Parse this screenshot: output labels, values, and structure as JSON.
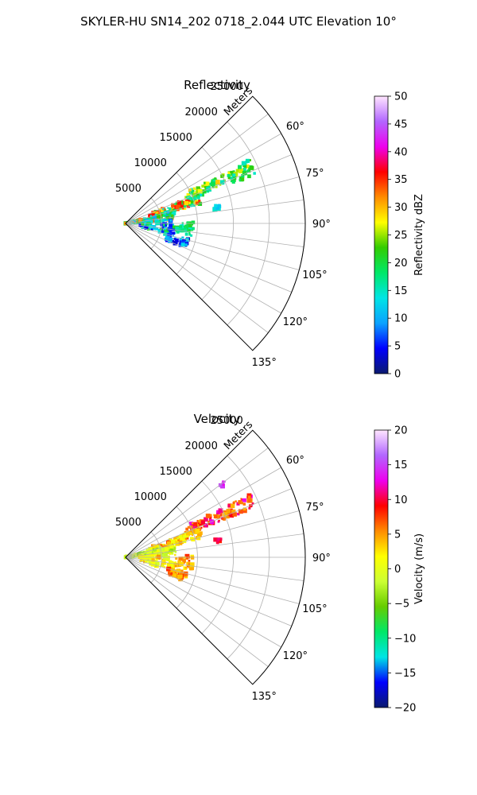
{
  "suptitle": "SKYLER-HU  SN14_202  0718_2.044 UTC Elevation 10°",
  "chart_data": [
    {
      "type": "polar-sector",
      "title": "Reflectivity",
      "radial_label": "Meters",
      "r_ticks": [
        5000,
        10000,
        15000,
        20000,
        25000
      ],
      "r_tick_labels": [
        "5000",
        "10000",
        "15000",
        "20000",
        "25000"
      ],
      "r_max": 25000,
      "theta_range_deg": [
        45,
        135
      ],
      "theta_gridlines_deg": [
        52.5,
        60,
        67.5,
        75,
        82.5,
        90,
        97.5,
        105,
        112.5,
        120,
        127.5
      ],
      "theta_tick_labels": [
        {
          "deg": 60,
          "label": "60°"
        },
        {
          "deg": 75,
          "label": "75°"
        },
        {
          "deg": 90,
          "label": "90°"
        },
        {
          "deg": 105,
          "label": "105°"
        },
        {
          "deg": 120,
          "label": "120°"
        },
        {
          "deg": 135,
          "label": "135°"
        }
      ],
      "colorbar": {
        "label": "Reflectivity dBZ",
        "min": 0,
        "max": 50,
        "ticks": [
          0,
          5,
          10,
          15,
          20,
          25,
          30,
          35,
          40,
          45,
          50
        ],
        "tick_labels": [
          "0",
          "5",
          "10",
          "15",
          "20",
          "25",
          "30",
          "35",
          "40",
          "45",
          "50"
        ],
        "color_stops": [
          "#0b1a6e",
          "#0000ff",
          "#0aa2ff",
          "#00e5e5",
          "#00e868",
          "#33cc00",
          "#ffff00",
          "#ff8c00",
          "#ff0000",
          "#ee00ee",
          "#b266ff",
          "#ffe6ff"
        ]
      },
      "echo_regions": [
        {
          "az_deg": 66,
          "r_m": [
            9000,
            19500
          ],
          "half_width_deg": 3.2,
          "values": [
            15,
            20,
            18,
            25,
            22,
            28
          ],
          "density": 120
        },
        {
          "az_deg": 72,
          "r_m": [
            3500,
            11000
          ],
          "half_width_deg": 3.5,
          "values": [
            18,
            28,
            35,
            22,
            15
          ],
          "density": 110
        },
        {
          "az_deg": 80,
          "r_m": [
            0,
            7000
          ],
          "half_width_deg": 5,
          "values": [
            10,
            18,
            22,
            32,
            15
          ],
          "density": 130
        },
        {
          "az_deg": 95,
          "r_m": [
            2000,
            7000
          ],
          "half_width_deg": 10,
          "values": [
            5,
            8,
            12,
            15,
            20
          ],
          "density": 80
        },
        {
          "az_deg": 108,
          "r_m": [
            6000,
            9000
          ],
          "half_width_deg": 4,
          "values": [
            3,
            5,
            10,
            12
          ],
          "density": 50
        },
        {
          "az_deg": 95,
          "r_m": [
            7000,
            9500
          ],
          "half_width_deg": 6,
          "values": [
            15,
            18,
            20
          ],
          "density": 35
        },
        {
          "az_deg": 80,
          "r_m": [
            12500,
            13500
          ],
          "half_width_deg": 1.2,
          "values": [
            12,
            14
          ],
          "density": 12
        }
      ]
    },
    {
      "type": "polar-sector",
      "title": "Velocity",
      "radial_label": "Meters",
      "r_ticks": [
        5000,
        10000,
        15000,
        20000,
        25000
      ],
      "r_tick_labels": [
        "5000",
        "10000",
        "15000",
        "20000",
        "25000"
      ],
      "r_max": 25000,
      "theta_range_deg": [
        45,
        135
      ],
      "theta_gridlines_deg": [
        52.5,
        60,
        67.5,
        75,
        82.5,
        90,
        97.5,
        105,
        112.5,
        120,
        127.5
      ],
      "theta_tick_labels": [
        {
          "deg": 60,
          "label": "60°"
        },
        {
          "deg": 75,
          "label": "75°"
        },
        {
          "deg": 90,
          "label": "90°"
        },
        {
          "deg": 105,
          "label": "105°"
        },
        {
          "deg": 120,
          "label": "120°"
        },
        {
          "deg": 135,
          "label": "135°"
        }
      ],
      "colorbar": {
        "label": "Velocity (m/s)",
        "min": -20,
        "max": 20,
        "ticks": [
          -20,
          -15,
          -10,
          -5,
          0,
          5,
          10,
          15,
          20
        ],
        "tick_labels": [
          "−20",
          "−15",
          "−10",
          "−5",
          "0",
          "5",
          "10",
          "15",
          "20"
        ],
        "color_stops": [
          "#0b1a6e",
          "#0000ff",
          "#00e5e5",
          "#00e868",
          "#66cc00",
          "#ccff33",
          "#ffff00",
          "#ff8c00",
          "#ff0000",
          "#ee00ee",
          "#b266ff",
          "#ffe6ff"
        ]
      },
      "echo_regions": [
        {
          "az_deg": 66,
          "r_m": [
            9000,
            19500
          ],
          "half_width_deg": 3.2,
          "values": [
            6,
            8,
            10,
            5,
            12
          ],
          "density": 120
        },
        {
          "az_deg": 72,
          "r_m": [
            3500,
            11000
          ],
          "half_width_deg": 3.5,
          "values": [
            0,
            2,
            4,
            6,
            3
          ],
          "density": 110
        },
        {
          "az_deg": 80,
          "r_m": [
            0,
            7000
          ],
          "half_width_deg": 5,
          "values": [
            -2,
            -4,
            0,
            2,
            -3
          ],
          "density": 130
        },
        {
          "az_deg": 95,
          "r_m": [
            2000,
            7000
          ],
          "half_width_deg": 10,
          "values": [
            0,
            2,
            -2,
            4
          ],
          "density": 80
        },
        {
          "az_deg": 108,
          "r_m": [
            6000,
            9000
          ],
          "half_width_deg": 4,
          "values": [
            4,
            6,
            8
          ],
          "density": 50
        },
        {
          "az_deg": 95,
          "r_m": [
            7000,
            9500
          ],
          "half_width_deg": 6,
          "values": [
            3,
            5,
            7
          ],
          "density": 35
        },
        {
          "az_deg": 80,
          "r_m": [
            12500,
            13500
          ],
          "half_width_deg": 1.2,
          "values": [
            9,
            11
          ],
          "density": 12
        },
        {
          "az_deg": 53,
          "r_m": [
            16500,
            17500
          ],
          "half_width_deg": 0.8,
          "values": [
            14
          ],
          "density": 6
        }
      ]
    }
  ]
}
